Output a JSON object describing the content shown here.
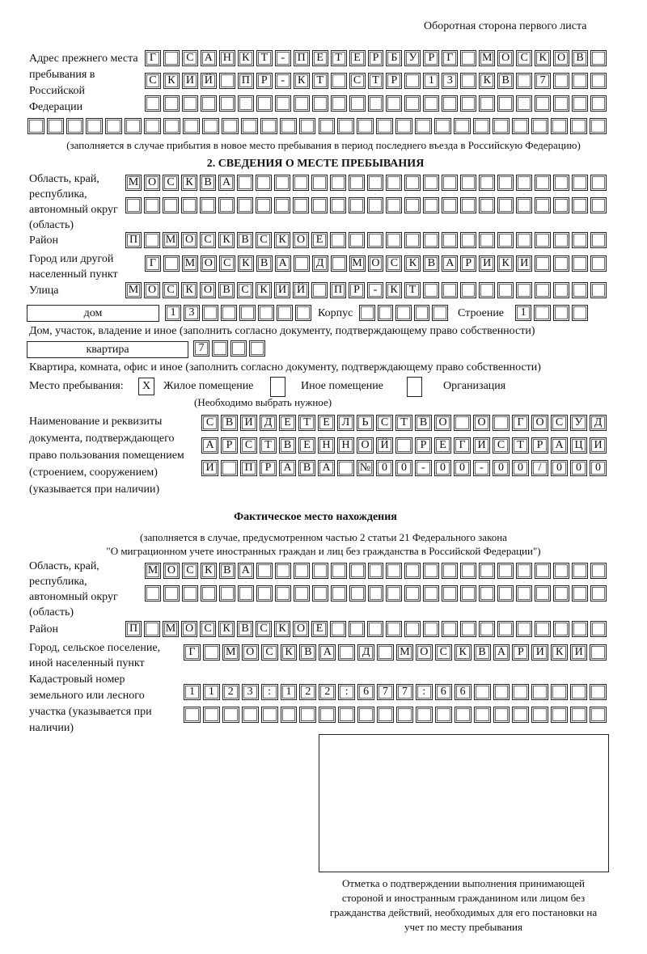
{
  "header": "Оборотная сторона первого листа",
  "prev_address": {
    "label": "Адрес прежнего места пребывания в Российской Федерации",
    "rows": [
      [
        "Г",
        "",
        "С",
        "А",
        "Н",
        "К",
        "Т",
        "-",
        "П",
        "Е",
        "Т",
        "Е",
        "Р",
        "Б",
        "У",
        "Р",
        "Г",
        "",
        "М",
        "О",
        "С",
        "К",
        "О",
        "В"
      ],
      [
        "С",
        "К",
        "И",
        "Й",
        "",
        "П",
        "Р",
        "-",
        "К",
        "Т",
        "",
        "С",
        "Т",
        "Р",
        "",
        "1",
        "3",
        "",
        "К",
        "В",
        "",
        "7",
        "",
        ""
      ],
      [],
      []
    ],
    "note": "(заполняется в случае прибытия в новое место пребывания в период последнего въезда в Российскую Федерацию)"
  },
  "section2": {
    "title": "2. СВЕДЕНИЯ О МЕСТЕ ПРЕБЫВАНИЯ",
    "region_label": "Область, край, республика, автономный округ (область)",
    "region_rows": [
      [
        "М",
        "О",
        "С",
        "К",
        "В",
        "А"
      ],
      []
    ],
    "district_label": "Район",
    "district": [
      "П",
      "",
      "М",
      "О",
      "С",
      "К",
      "В",
      "С",
      "К",
      "О",
      "Е"
    ],
    "city_label": "Город или другой населенный пункт",
    "city": [
      "Г",
      "",
      "М",
      "О",
      "С",
      "К",
      "В",
      "А",
      "",
      "Д",
      "",
      "М",
      "О",
      "С",
      "К",
      "В",
      "А",
      "Р",
      "И",
      "К",
      "И"
    ],
    "street_label": "Улица",
    "street": [
      "М",
      "О",
      "С",
      "К",
      "О",
      "В",
      "С",
      "К",
      "И",
      "Й",
      "",
      "П",
      "Р",
      "-",
      "К",
      "Т"
    ],
    "house_type": "дом",
    "house": [
      "1",
      "3"
    ],
    "korpus_label": "Корпус",
    "korpus": [],
    "building_label": "Строение",
    "building": [
      "1"
    ],
    "house_caption": "Дом, участок, владение и иное (заполнить согласно документу, подтверждающему право собственности)",
    "flat_type": "квартира",
    "flat": [
      "7"
    ],
    "flat_caption": "Квартира, комната, офис и иное (заполнить согласно документу, подтверждающему право собственности)",
    "stay_label": "Место пребывания:",
    "stay_options": [
      {
        "label": "Жилое помещение",
        "mark": "X"
      },
      {
        "label": "Иное помещение",
        "mark": ""
      },
      {
        "label": "Организация",
        "mark": ""
      }
    ],
    "stay_note": "(Необходимо выбрать нужное)",
    "doc_label": "Наименование и реквизиты документа, подтверждающего право пользования помещением (строением, сооружением) (указывается при наличии)",
    "doc_rows": [
      [
        "С",
        "В",
        "И",
        "Д",
        "Е",
        "Т",
        "Е",
        "Л",
        "Ь",
        "С",
        "Т",
        "В",
        "О",
        "",
        "О",
        "",
        "Г",
        "О",
        "С",
        "У",
        "Д"
      ],
      [
        "А",
        "Р",
        "С",
        "Т",
        "В",
        "Е",
        "Н",
        "Н",
        "О",
        "Й",
        "",
        "Р",
        "Е",
        "Г",
        "И",
        "С",
        "Т",
        "Р",
        "А",
        "Ц",
        "И"
      ],
      [
        "И",
        "",
        "П",
        "Р",
        "А",
        "В",
        "А",
        "",
        "№",
        "0",
        "0",
        "-",
        "0",
        "0",
        "-",
        "0",
        "0",
        "/",
        "0",
        "0",
        "0"
      ]
    ]
  },
  "actual": {
    "title": "Фактическое место нахождения",
    "note1": "(заполняется в случае, предусмотренном частью 2 статьи 21 Федерального закона",
    "note2": "\"О миграционном учете иностранных граждан и лиц без гражданства в Российской Федерации\")",
    "region_label": "Область, край, республика, автономный округ (область)",
    "region_rows": [
      [
        "М",
        "О",
        "С",
        "К",
        "В",
        "А"
      ],
      []
    ],
    "district_label": "Район",
    "district": [
      "П",
      "",
      "М",
      "О",
      "С",
      "К",
      "В",
      "С",
      "К",
      "О",
      "Е"
    ],
    "city_label": "Город, сельское поселение, иной населенный пункт",
    "city": [
      "Г",
      "",
      "М",
      "О",
      "С",
      "К",
      "В",
      "А",
      "",
      "Д",
      "",
      "М",
      "О",
      "С",
      "К",
      "В",
      "А",
      "Р",
      "И",
      "К",
      "И"
    ],
    "cadastre_label": "Кадастровый номер земельного или лесного участка (указывается при наличии)",
    "cadastre_rows": [
      [
        "1",
        "1",
        "2",
        "3",
        ":",
        "1",
        "2",
        "2",
        ":",
        "6",
        "7",
        "7",
        ":",
        "6",
        "6"
      ],
      []
    ]
  },
  "stamp_caption": "Отметка о подтверждении выполнения принимающей стороной и иностранным гражданином или лицом без гражданства действий, необходимых для его постановки на учет по месту пребывания"
}
